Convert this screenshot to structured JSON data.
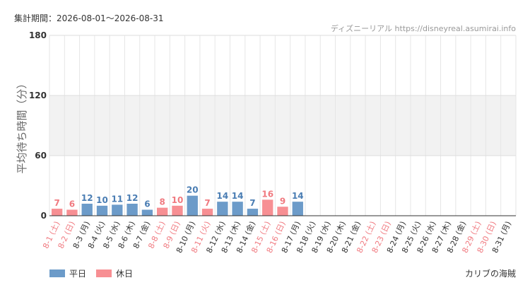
{
  "period_label": "集計期間：2026-08-01〜2026-08-31",
  "source": "ディズニーリアル https://disneyreal.asumirai.info",
  "attraction": "カリブの海賊",
  "colors": {
    "weekday": "#6c9bc9",
    "holiday": "#f78f93",
    "weekday_text": "#4a7db3",
    "holiday_text": "#f07a80"
  },
  "chart_data": {
    "type": "bar",
    "ylabel": "平均待ち時間（分）",
    "ylim": [
      0,
      180
    ],
    "yticks": [
      "0",
      "60",
      "120",
      "180"
    ],
    "grid": true,
    "legend": [
      {
        "label": "平日",
        "kind": "weekday"
      },
      {
        "label": "休日",
        "kind": "holiday"
      }
    ],
    "categories": [
      "8-1 (土)",
      "8-2 (日)",
      "8-3 (月)",
      "8-4 (火)",
      "8-5 (水)",
      "8-6 (木)",
      "8-7 (金)",
      "8-8 (土)",
      "8-9 (日)",
      "8-10 (月)",
      "8-11 (火)",
      "8-12 (水)",
      "8-13 (木)",
      "8-14 (金)",
      "8-15 (土)",
      "8-16 (日)",
      "8-17 (月)",
      "8-18 (火)",
      "8-19 (水)",
      "8-20 (木)",
      "8-21 (金)",
      "8-22 (土)",
      "8-23 (日)",
      "8-24 (月)",
      "8-25 (火)",
      "8-26 (水)",
      "8-27 (木)",
      "8-28 (金)",
      "8-29 (土)",
      "8-30 (日)",
      "8-31 (月)"
    ],
    "day_kind": [
      "holiday",
      "holiday",
      "weekday",
      "weekday",
      "weekday",
      "weekday",
      "weekday",
      "holiday",
      "holiday",
      "weekday",
      "holiday",
      "weekday",
      "weekday",
      "weekday",
      "holiday",
      "holiday",
      "weekday",
      "weekday",
      "weekday",
      "weekday",
      "weekday",
      "holiday",
      "holiday",
      "weekday",
      "weekday",
      "weekday",
      "weekday",
      "weekday",
      "holiday",
      "holiday",
      "weekday"
    ],
    "values": [
      7,
      6,
      12,
      10,
      11,
      12,
      6,
      8,
      10,
      20,
      7,
      14,
      14,
      7,
      16,
      9,
      14,
      null,
      null,
      null,
      null,
      null,
      null,
      null,
      null,
      null,
      null,
      null,
      null,
      null,
      null
    ]
  }
}
